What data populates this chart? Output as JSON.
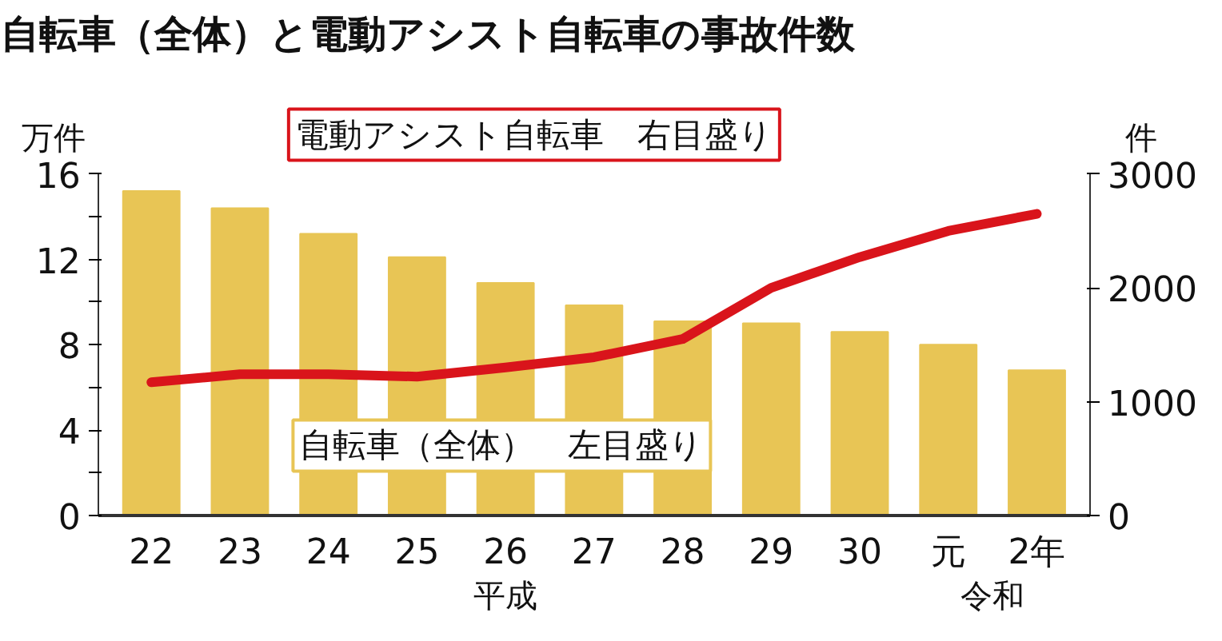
{
  "chart_data": {
    "type": "bar",
    "title": "自転車（全体）と電動アシスト自転車の事故件数",
    "ylabel": "万件",
    "y2label": "件",
    "categories": [
      "22",
      "23",
      "24",
      "25",
      "26",
      "27",
      "28",
      "29",
      "30",
      "元",
      "2年"
    ],
    "series": [
      {
        "name": "自転車（全体）",
        "color": "#e8c555",
        "values": [
          15.2,
          14.4,
          13.2,
          12.1,
          10.9,
          9.85,
          9.1,
          9.0,
          8.6,
          8.0,
          6.8
        ]
      },
      {
        "name": "電動アシスト自転車",
        "type": "line",
        "axis": "y2",
        "color": "#d9141b",
        "values": [
          1170,
          1240,
          1240,
          1220,
          1300,
          1390,
          1550,
          2000,
          2270,
          2500,
          2650
        ]
      }
    ],
    "ylim": [
      0,
      16
    ],
    "yticks": [
      0,
      {
        "value": 2,
        "label": null
      },
      4,
      {
        "value": 6,
        "label": null
      },
      8,
      {
        "value": 10,
        "label": null
      },
      12,
      {
        "value": 14,
        "label": null
      },
      16
    ],
    "y2lim": [
      0,
      3000
    ],
    "y2ticks": [
      0,
      1000,
      2000,
      3000
    ],
    "annotations": [
      "左目盛り",
      "右目盛り",
      "平成",
      "令和"
    ],
    "grid": false
  }
}
